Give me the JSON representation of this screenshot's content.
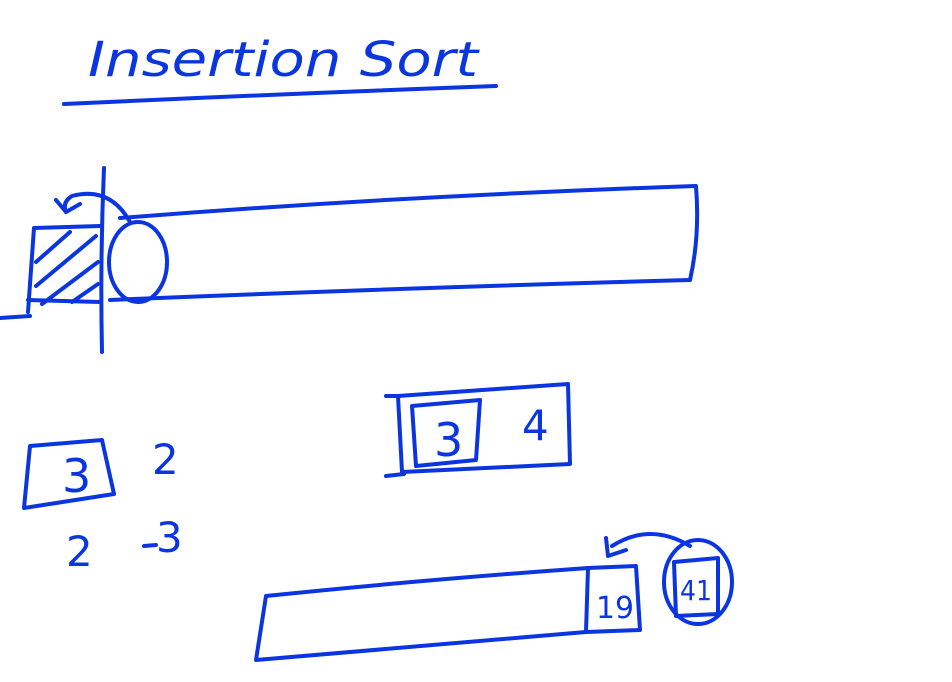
{
  "title": "Insertion Sort",
  "colors": {
    "ink": "#0b35e0",
    "background": "#ffffff"
  },
  "example_pair": {
    "before": {
      "boxed": "3",
      "next": "2"
    },
    "after": {
      "first": "2",
      "second": "3"
    }
  },
  "boxed_pair": {
    "boxed": "3",
    "next": "4"
  },
  "bottom_array": {
    "last_value": "19",
    "incoming_value": "41"
  }
}
